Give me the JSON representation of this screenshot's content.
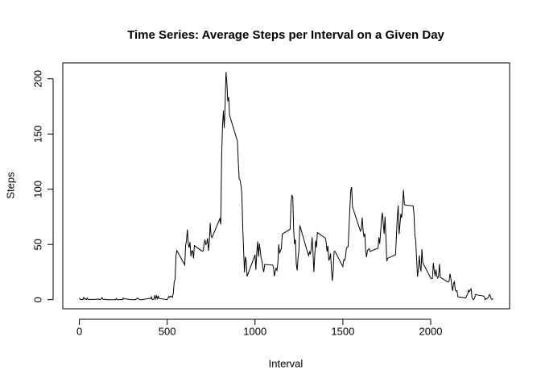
{
  "chart_data": {
    "type": "line",
    "title": "Time Series: Average Steps per Interval on a Given Day",
    "x_label": "Interval",
    "y_label": "Steps",
    "x": [
      0,
      5,
      10,
      15,
      20,
      25,
      30,
      35,
      40,
      45,
      50,
      55,
      100,
      105,
      110,
      115,
      120,
      125,
      130,
      135,
      140,
      145,
      150,
      155,
      200,
      205,
      210,
      215,
      220,
      225,
      230,
      235,
      240,
      245,
      250,
      255,
      300,
      305,
      310,
      315,
      320,
      325,
      330,
      335,
      340,
      345,
      350,
      355,
      400,
      405,
      410,
      415,
      420,
      425,
      430,
      435,
      440,
      445,
      450,
      455,
      500,
      505,
      510,
      515,
      520,
      525,
      530,
      535,
      540,
      545,
      550,
      555,
      600,
      605,
      610,
      615,
      620,
      625,
      630,
      635,
      640,
      645,
      650,
      655,
      700,
      705,
      710,
      715,
      720,
      725,
      730,
      735,
      740,
      745,
      750,
      755,
      800,
      805,
      810,
      815,
      820,
      825,
      830,
      835,
      840,
      845,
      850,
      855,
      900,
      905,
      910,
      915,
      920,
      925,
      930,
      935,
      940,
      945,
      950,
      955,
      1000,
      1005,
      1010,
      1015,
      1020,
      1025,
      1030,
      1035,
      1040,
      1045,
      1050,
      1055,
      1100,
      1105,
      1110,
      1115,
      1120,
      1125,
      1130,
      1135,
      1140,
      1145,
      1150,
      1155,
      1200,
      1205,
      1210,
      1215,
      1220,
      1225,
      1230,
      1235,
      1240,
      1245,
      1250,
      1255,
      1300,
      1305,
      1310,
      1315,
      1320,
      1325,
      1330,
      1335,
      1340,
      1345,
      1350,
      1355,
      1400,
      1405,
      1410,
      1415,
      1420,
      1425,
      1430,
      1435,
      1440,
      1445,
      1450,
      1455,
      1500,
      1505,
      1510,
      1515,
      1520,
      1525,
      1530,
      1535,
      1540,
      1545,
      1550,
      1555,
      1600,
      1605,
      1610,
      1615,
      1620,
      1625,
      1630,
      1635,
      1640,
      1645,
      1650,
      1655,
      1700,
      1705,
      1710,
      1715,
      1720,
      1725,
      1730,
      1735,
      1740,
      1745,
      1750,
      1755,
      1800,
      1805,
      1810,
      1815,
      1820,
      1825,
      1830,
      1835,
      1840,
      1845,
      1850,
      1855,
      1900,
      1905,
      1910,
      1915,
      1920,
      1925,
      1930,
      1935,
      1940,
      1945,
      1950,
      1955,
      2000,
      2005,
      2010,
      2015,
      2020,
      2025,
      2030,
      2035,
      2040,
      2045,
      2050,
      2055,
      2100,
      2105,
      2110,
      2115,
      2120,
      2125,
      2130,
      2135,
      2140,
      2145,
      2150,
      2155,
      2200,
      2205,
      2210,
      2215,
      2220,
      2225,
      2230,
      2235,
      2240,
      2245,
      2250,
      2255,
      2300,
      2305,
      2310,
      2315,
      2320,
      2325,
      2330,
      2335,
      2340,
      2345,
      2350,
      2355
    ],
    "series": [
      {
        "color": "#000000",
        "values": [
          1.7,
          0.3,
          0.1,
          0.2,
          0.1,
          2.1,
          0.5,
          0.9,
          0,
          1.5,
          0.3,
          0.1,
          0.3,
          0.7,
          0.2,
          0.3,
          0,
          1.1,
          1.8,
          0.2,
          0.2,
          0.4,
          0.3,
          0,
          0,
          0,
          1.1,
          0,
          0,
          0.1,
          0,
          0.2,
          0,
          0,
          1.5,
          0.9,
          0,
          0,
          0,
          0,
          0.2,
          0.6,
          1.6,
          0.6,
          0.5,
          0.1,
          0,
          0,
          1.2,
          0.9,
          2.6,
          0,
          0.3,
          0.4,
          4.1,
          0.7,
          3.5,
          0.8,
          3.1,
          1.1,
          0,
          1.6,
          3,
          2.2,
          3.3,
          3,
          2.1,
          6.1,
          16,
          18.3,
          39.5,
          44.5,
          31.5,
          49.3,
          53.8,
          63.5,
          50,
          47.1,
          52.2,
          39.3,
          44,
          44.2,
          37.4,
          49,
          43.8,
          44.4,
          50.5,
          54.5,
          49.9,
          51,
          55.7,
          44.3,
          52.3,
          69.5,
          57.8,
          56.2,
          73.4,
          68.2,
          129.4,
          157.5,
          171.2,
          155.4,
          177.3,
          206.2,
          195.9,
          179.6,
          183.4,
          167,
          143.5,
          124,
          109.1,
          108.1,
          103.7,
          95.9,
          66.2,
          45.2,
          24.8,
          38.8,
          35,
          21.1,
          40.6,
          27,
          42.4,
          52.7,
          38.9,
          50.8,
          44.3,
          37.4,
          34.7,
          28.3,
          25.1,
          31.9,
          31.4,
          29.7,
          21.3,
          25.5,
          28.4,
          26.5,
          33.4,
          50,
          42,
          44.6,
          46,
          59.3,
          63.9,
          87.7,
          94.8,
          92.8,
          63.4,
          50.2,
          54.5,
          32.4,
          26.5,
          37.7,
          45.1,
          67.3,
          42.3,
          39.9,
          43.3,
          41,
          46.2,
          56.4,
          42.8,
          25.1,
          40,
          53.5,
          47.3,
          60.8,
          55.8,
          52,
          43.6,
          48.7,
          35.5,
          37.5,
          41.8,
          27.5,
          17.1,
          26.1,
          43.6,
          43.8,
          30,
          36.1,
          35.5,
          38.8,
          46,
          47.8,
          48.1,
          65.3,
          82.9,
          98.7,
          102.1,
          84,
          62.1,
          64.1,
          74.5,
          63.2,
          56.9,
          59.8,
          43.9,
          38.6,
          44.7,
          45.5,
          46.2,
          43.7,
          46.6,
          56.3,
          50.7,
          61.2,
          72.7,
          78.9,
          68.9,
          59.7,
          75.1,
          56.5,
          34.8,
          37.5,
          40.7,
          58,
          74.7,
          85.3,
          59.3,
          67.8,
          77.7,
          74.2,
          85.3,
          99.5,
          86.6,
          85.6,
          84.9,
          77.8,
          58,
          53.4,
          36.3,
          20.7,
          27.4,
          40,
          30.2,
          25.5,
          45.7,
          33.5,
          19.6,
          19,
          19.3,
          33.3,
          26.8,
          21.2,
          27.3,
          21.3,
          19.5,
          21.3,
          32.3,
          20.2,
          15.9,
          17.2,
          23.5,
          19.2,
          12.5,
          8,
          14.7,
          16.3,
          8.7,
          7.8,
          8.1,
          2.6,
          1.5,
          3.7,
          4.8,
          8.5,
          7.1,
          8.7,
          9.8,
          2.2,
          0.3,
          0.1,
          1.6,
          4.6,
          3.3,
          2.8,
          0,
          0.8,
          1,
          1.6,
          2.6,
          4.7,
          3.3,
          0.6,
          0.2,
          1.1
        ]
      }
    ],
    "xlim": [
      -94.2,
      2449.2
    ],
    "xticks": [
      0,
      500,
      1000,
      1500,
      2000
    ],
    "ylim": [
      -8.25,
      214.4
    ],
    "yticks": [
      0,
      50,
      100,
      150,
      200
    ]
  }
}
